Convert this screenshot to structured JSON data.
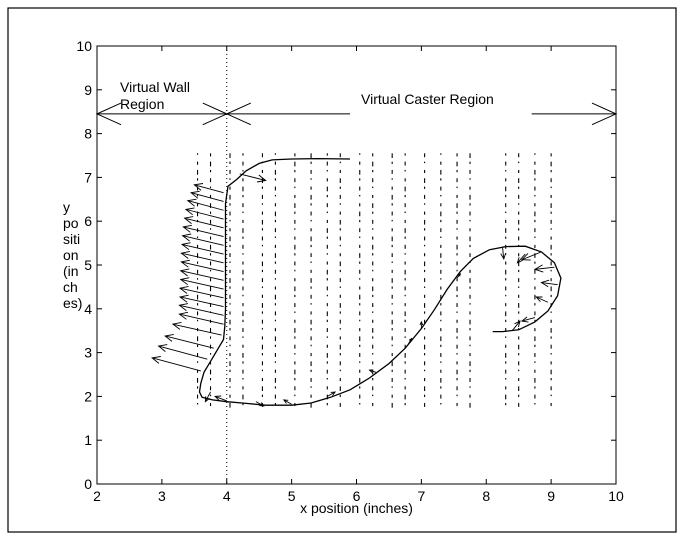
{
  "chart_data": {
    "type": "line",
    "title": "",
    "xlabel": "x position (inches)",
    "ylabel_lines": [
      "y",
      "po",
      "siti",
      "on",
      "(in",
      "ch",
      "es)"
    ],
    "xlim": [
      2,
      10
    ],
    "ylim": [
      0,
      10
    ],
    "xticks": [
      2,
      3,
      4,
      5,
      6,
      7,
      8,
      9,
      10
    ],
    "yticks": [
      0,
      1,
      2,
      3,
      4,
      5,
      6,
      7,
      8,
      9,
      10
    ],
    "grid": false,
    "regions": {
      "wall_label_lines": [
        "Virtual Wall",
        "Region"
      ],
      "caster_label": "Virtual Caster Region",
      "boundary_x": 4,
      "arrow_y": 8.45
    },
    "trajectory": [
      [
        5.9,
        7.42
      ],
      [
        5.4,
        7.43
      ],
      [
        5.0,
        7.42
      ],
      [
        4.7,
        7.4
      ],
      [
        4.5,
        7.32
      ],
      [
        4.3,
        7.15
      ],
      [
        4.15,
        6.95
      ],
      [
        4.02,
        6.8
      ],
      [
        3.98,
        6.4
      ],
      [
        3.98,
        6.0
      ],
      [
        3.98,
        5.5
      ],
      [
        3.98,
        5.0
      ],
      [
        3.98,
        4.5
      ],
      [
        3.98,
        4.0
      ],
      [
        3.97,
        3.6
      ],
      [
        3.95,
        3.3
      ],
      [
        3.85,
        3.05
      ],
      [
        3.75,
        2.8
      ],
      [
        3.65,
        2.55
      ],
      [
        3.6,
        2.3
      ],
      [
        3.58,
        2.1
      ],
      [
        3.62,
        1.98
      ],
      [
        3.78,
        1.92
      ],
      [
        4.0,
        1.88
      ],
      [
        4.3,
        1.84
      ],
      [
        4.6,
        1.8
      ],
      [
        5.0,
        1.8
      ],
      [
        5.3,
        1.85
      ],
      [
        5.6,
        1.98
      ],
      [
        5.9,
        2.15
      ],
      [
        6.2,
        2.42
      ],
      [
        6.5,
        2.75
      ],
      [
        6.75,
        3.1
      ],
      [
        7.0,
        3.55
      ],
      [
        7.2,
        3.98
      ],
      [
        7.4,
        4.45
      ],
      [
        7.6,
        4.85
      ],
      [
        7.8,
        5.15
      ],
      [
        8.05,
        5.35
      ],
      [
        8.3,
        5.42
      ],
      [
        8.6,
        5.43
      ],
      [
        8.85,
        5.3
      ],
      [
        9.05,
        5.05
      ],
      [
        9.15,
        4.7
      ],
      [
        9.1,
        4.3
      ],
      [
        8.95,
        3.95
      ],
      [
        8.75,
        3.7
      ],
      [
        8.5,
        3.52
      ],
      [
        8.25,
        3.48
      ],
      [
        8.1,
        3.48
      ]
    ],
    "force_arrows": [
      [
        3.95,
        6.65,
        -0.45,
        0.18
      ],
      [
        3.95,
        6.45,
        -0.5,
        0.2
      ],
      [
        3.95,
        6.25,
        -0.55,
        0.22
      ],
      [
        3.95,
        6.05,
        -0.58,
        0.22
      ],
      [
        3.95,
        5.85,
        -0.6,
        0.22
      ],
      [
        3.95,
        5.65,
        -0.62,
        0.22
      ],
      [
        3.95,
        5.45,
        -0.63,
        0.22
      ],
      [
        3.95,
        5.25,
        -0.64,
        0.22
      ],
      [
        3.95,
        5.05,
        -0.65,
        0.22
      ],
      [
        3.95,
        4.85,
        -0.65,
        0.22
      ],
      [
        3.95,
        4.65,
        -0.66,
        0.22
      ],
      [
        3.95,
        4.45,
        -0.66,
        0.22
      ],
      [
        3.95,
        4.25,
        -0.67,
        0.22
      ],
      [
        3.95,
        4.05,
        -0.67,
        0.22
      ],
      [
        3.95,
        3.85,
        -0.68,
        0.23
      ],
      [
        3.95,
        3.65,
        -0.68,
        0.23
      ],
      [
        3.92,
        3.4,
        -0.75,
        0.25
      ],
      [
        3.8,
        3.1,
        -0.75,
        0.28
      ],
      [
        3.7,
        2.85,
        -0.75,
        0.3
      ],
      [
        3.6,
        2.58,
        -0.75,
        0.3
      ],
      [
        4.2,
        7.08,
        0.4,
        -0.15
      ],
      [
        3.75,
        2.1,
        -0.08,
        -0.22
      ],
      [
        4.0,
        1.9,
        -0.18,
        0.1
      ],
      [
        4.45,
        1.88,
        0.12,
        -0.1
      ],
      [
        5.0,
        1.82,
        -0.12,
        0.1
      ],
      [
        5.55,
        2.0,
        0.12,
        0.1
      ],
      [
        6.3,
        2.55,
        -0.1,
        0.05
      ],
      [
        6.8,
        3.2,
        0.05,
        0.12
      ],
      [
        7.0,
        3.55,
        0.0,
        0.15
      ],
      [
        7.55,
        4.7,
        0.05,
        0.1
      ],
      [
        8.25,
        5.42,
        0.02,
        -0.28
      ],
      [
        8.6,
        5.25,
        -0.12,
        -0.2
      ],
      [
        8.85,
        5.3,
        -0.3,
        -0.18
      ],
      [
        9.05,
        4.95,
        -0.3,
        -0.05
      ],
      [
        9.1,
        4.55,
        -0.25,
        0.05
      ],
      [
        8.95,
        4.15,
        -0.18,
        0.12
      ],
      [
        8.75,
        3.8,
        -0.2,
        -0.08
      ],
      [
        8.4,
        3.5,
        0.12,
        0.22
      ]
    ],
    "velocity_field": {
      "x": [
        3.55,
        3.75,
        4.05,
        4.25,
        4.55,
        4.75,
        5.05,
        5.3,
        5.55,
        5.75,
        6.05,
        6.25,
        6.55,
        6.75,
        7.05,
        7.3,
        7.55,
        7.75,
        8.3,
        8.5,
        8.75,
        9.0
      ],
      "ymin": 1.85,
      "ymax": 7.55,
      "step": 0.19
    }
  }
}
